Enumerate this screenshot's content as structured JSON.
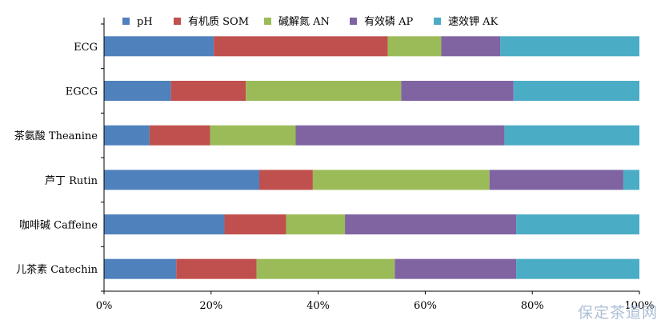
{
  "watermark": "保定茶道网",
  "chart_data": {
    "type": "bar",
    "orientation": "horizontal",
    "stacked": "percent",
    "categories": [
      "ECG",
      "EGCG",
      "茶氨酸 Theanine",
      "芦丁 Rutin",
      "咖啡碱 Caffeine",
      "儿茶素 Catechin"
    ],
    "series": [
      {
        "name": "pH",
        "color": "#4f81bd",
        "values": [
          20.5,
          12.5,
          8.5,
          29.0,
          22.5,
          13.5
        ]
      },
      {
        "name": "有机质 SOM",
        "color": "#c0504d",
        "values": [
          32.5,
          14.0,
          11.3,
          10.0,
          11.5,
          15.0
        ]
      },
      {
        "name": "碱解氮 AN",
        "color": "#9bbb59",
        "values": [
          10.0,
          29.0,
          16.0,
          33.0,
          11.0,
          25.8
        ]
      },
      {
        "name": "有效磷 AP",
        "color": "#8064a2",
        "values": [
          11.0,
          21.0,
          39.0,
          25.0,
          32.0,
          22.7
        ]
      },
      {
        "name": "速效钾 AK",
        "color": "#4bacc6",
        "values": [
          26.0,
          23.5,
          25.2,
          3.0,
          23.0,
          23.0
        ]
      }
    ],
    "xlim": [
      0,
      100
    ],
    "xticks": [
      "0%",
      "20%",
      "40%",
      "60%",
      "80%",
      "100%"
    ],
    "grid": false,
    "legend": "top"
  }
}
